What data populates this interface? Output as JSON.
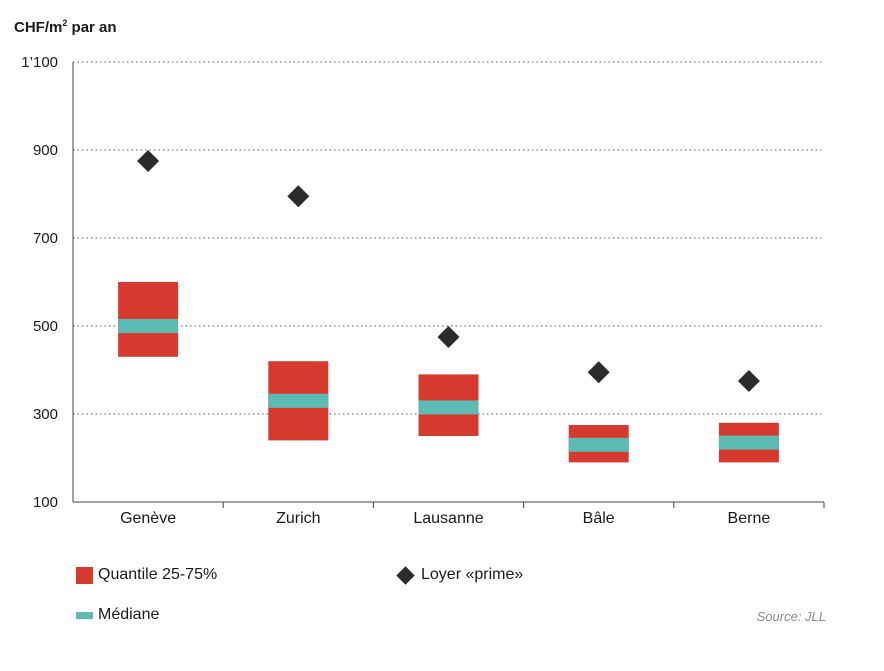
{
  "chart_data": {
    "type": "box",
    "ylabel_main": "CHF/m",
    "ylabel_sup": "2",
    "ylabel_rest": " par an",
    "categories": [
      "Genève",
      "Zurich",
      "Lausanne",
      "Bâle",
      "Berne"
    ],
    "ylim": [
      100,
      1100
    ],
    "yticks": [
      100,
      300,
      500,
      700,
      900,
      1100
    ],
    "ytick_labels": [
      "100",
      "300",
      "500",
      "700",
      "900",
      "1’100"
    ],
    "grid": true,
    "series": [
      {
        "name": "Quantile 25-75%",
        "q1": [
          430,
          240,
          250,
          190,
          190
        ],
        "q3": [
          600,
          420,
          390,
          275,
          280
        ]
      },
      {
        "name": "Médiane",
        "values": [
          500,
          330,
          315,
          230,
          235
        ]
      },
      {
        "name": "Loyer «prime»",
        "values": [
          875,
          795,
          475,
          395,
          375
        ]
      }
    ],
    "colors": {
      "box": "#d63a2f",
      "median": "#5cbbb3",
      "prime": "#2b2b2b",
      "grid": "#777777"
    },
    "source": "Source: JLL"
  }
}
